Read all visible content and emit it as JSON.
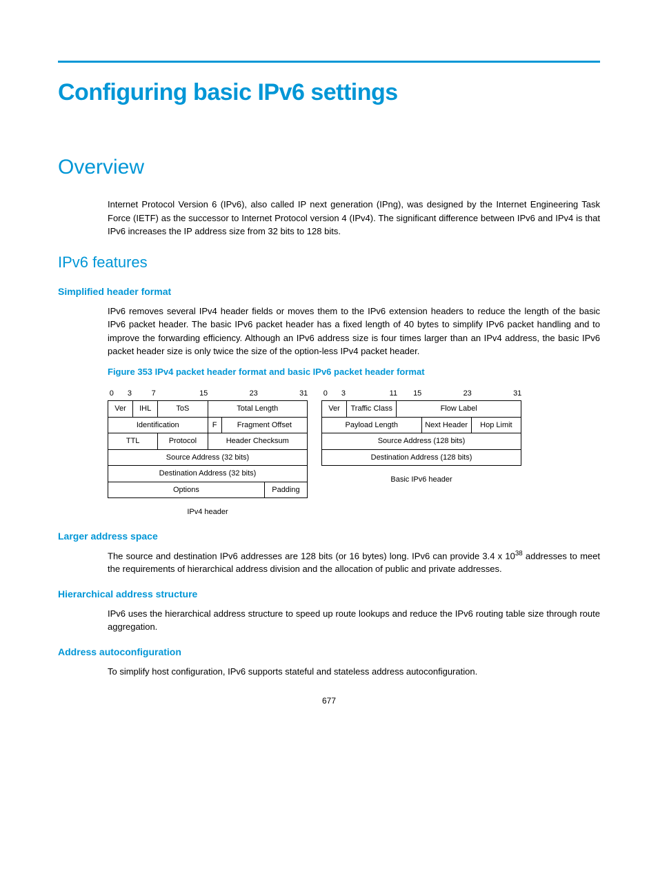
{
  "colors": {
    "accent": "#0096d6",
    "text": "#000000",
    "border": "#000000",
    "background": "#ffffff"
  },
  "page": {
    "title": "Configuring basic IPv6 settings",
    "page_number": "677"
  },
  "overview": {
    "heading": "Overview",
    "paragraph": "Internet Protocol Version 6 (IPv6), also called IP next generation (IPng), was designed by the Internet Engineering Task Force (IETF) as the successor to Internet Protocol version 4 (IPv4). The significant difference between IPv6 and IPv4 is that IPv6 increases the IP address size from 32 bits to 128 bits."
  },
  "features": {
    "heading": "IPv6 features",
    "simplified": {
      "heading": "Simplified header format",
      "paragraph": "IPv6 removes several IPv4 header fields or moves them to the IPv6 extension headers to reduce the length of the basic IPv6 packet header. The basic IPv6 packet header has a fixed length of 40 bytes to simplify IPv6 packet handling and to improve the forwarding efficiency. Although an IPv6 address size is four times larger than an IPv4 address, the basic IPv6 packet header size is only twice the size of the option-less IPv4 packet header."
    },
    "larger": {
      "heading": "Larger address space",
      "para_a": "The source and destination IPv6 addresses are 128 bits (or 16 bytes) long. IPv6 can provide 3.4 x 10",
      "para_exp": "38",
      "para_b": " addresses to meet the requirements of hierarchical address division and the allocation of public and private addresses."
    },
    "hierarchical": {
      "heading": "Hierarchical address structure",
      "paragraph": "IPv6 uses the hierarchical address structure to speed up route lookups and reduce the IPv6 routing table size through route aggregation."
    },
    "autoconf": {
      "heading": "Address autoconfiguration",
      "paragraph": "To simplify host configuration, IPv6 supports stateful and stateless address autoconfiguration."
    }
  },
  "figure": {
    "caption": "Figure 353 IPv4 packet header format and basic IPv6 packet header format",
    "ipv4": {
      "ruler": [
        "0",
        "3",
        "7",
        "15",
        "23",
        "31"
      ],
      "ruler_pos_pct": [
        2,
        11,
        23,
        48,
        73,
        98
      ],
      "rows": {
        "ver": "Ver",
        "ihl": "IHL",
        "tos": "ToS",
        "totlen": "Total Length",
        "ident": "Identification",
        "f": "F",
        "fragoff": "Fragment Offset",
        "ttl": "TTL",
        "proto": "Protocol",
        "cksum": "Header Checksum",
        "src": "Source Address (32 bits)",
        "dst": "Destination Address (32 bits)",
        "opts": "Options",
        "pad": "Padding"
      },
      "label": "IPv4 header"
    },
    "ipv6": {
      "ruler": [
        "0",
        "3",
        "11",
        "15",
        "23",
        "31"
      ],
      "ruler_pos_pct": [
        2,
        11,
        36,
        48,
        73,
        98
      ],
      "rows": {
        "ver": "Ver",
        "tc": "Traffic Class",
        "flow": "Flow Label",
        "paylen": "Payload Length",
        "nh": "Next Header",
        "hop": "Hop Limit",
        "src": "Source Address (128 bits)",
        "dst": "Destination Address (128 bits)"
      },
      "label": "Basic IPv6 header"
    }
  }
}
